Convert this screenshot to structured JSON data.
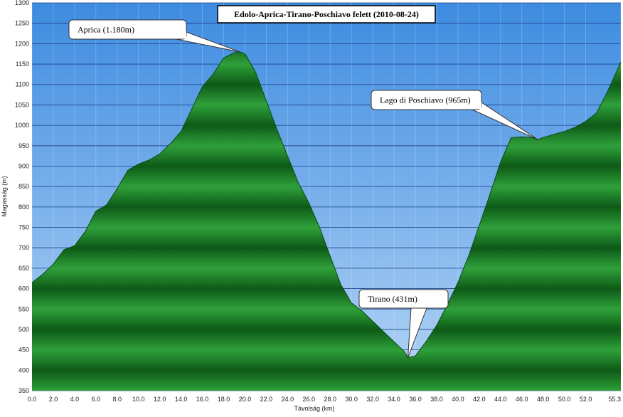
{
  "chart_data": {
    "type": "area",
    "title": "Edolo-Aprica-Tirano-Poschiavo felett (2010-08-24)",
    "x_label": "Távolság  (km)",
    "y_label": "Magasság (m)",
    "color": "#1e8a2a",
    "x": [
      0,
      1,
      2,
      3,
      4,
      5,
      6,
      7,
      8,
      9,
      10,
      11,
      12,
      13,
      14,
      15,
      16,
      17,
      18,
      19,
      19.5,
      20,
      21,
      22,
      23,
      24,
      25,
      26,
      27,
      28,
      29,
      30,
      31,
      32,
      33,
      34,
      35,
      35.3,
      36,
      37,
      38,
      39,
      40,
      41,
      42,
      43,
      44,
      45,
      46,
      47,
      47.5,
      48,
      49,
      50,
      51,
      52,
      53,
      54,
      55.3
    ],
    "values": [
      615,
      635,
      660,
      695,
      705,
      740,
      790,
      805,
      845,
      890,
      905,
      915,
      930,
      955,
      985,
      1040,
      1095,
      1125,
      1165,
      1178,
      1180,
      1175,
      1130,
      1060,
      990,
      925,
      860,
      810,
      750,
      680,
      610,
      565,
      545,
      520,
      495,
      470,
      445,
      431,
      435,
      470,
      510,
      560,
      615,
      680,
      755,
      830,
      910,
      970,
      972,
      970,
      965,
      970,
      978,
      985,
      995,
      1010,
      1030,
      1080,
      1155
    ],
    "xlim": [
      0,
      55.3
    ],
    "ylim": [
      350,
      1300
    ],
    "xticks": [
      {
        "value": 0,
        "label": "0.0"
      },
      {
        "value": 2,
        "label": "2.0"
      },
      {
        "value": 4,
        "label": "4.0"
      },
      {
        "value": 6,
        "label": "6.0"
      },
      {
        "value": 8,
        "label": "8.0"
      },
      {
        "value": 10,
        "label": "10.0"
      },
      {
        "value": 12,
        "label": "12.0"
      },
      {
        "value": 14,
        "label": "14.0"
      },
      {
        "value": 16,
        "label": "16.0"
      },
      {
        "value": 18,
        "label": "18.0"
      },
      {
        "value": 20,
        "label": "20.0"
      },
      {
        "value": 22,
        "label": "22.0"
      },
      {
        "value": 24,
        "label": "24.0"
      },
      {
        "value": 26,
        "label": "26.0"
      },
      {
        "value": 28,
        "label": "28.0"
      },
      {
        "value": 30,
        "label": "30.0"
      },
      {
        "value": 32,
        "label": "32.0"
      },
      {
        "value": 34,
        "label": "34.0"
      },
      {
        "value": 36,
        "label": "36.0"
      },
      {
        "value": 38,
        "label": "38.0"
      },
      {
        "value": 40,
        "label": "40.0"
      },
      {
        "value": 42,
        "label": "42.0"
      },
      {
        "value": 44,
        "label": "44.0"
      },
      {
        "value": 46,
        "label": "46.0"
      },
      {
        "value": 48,
        "label": "48.0"
      },
      {
        "value": 50,
        "label": "50.0"
      },
      {
        "value": 52,
        "label": "52.0"
      },
      55.3
    ],
    "yticks": [
      350,
      400,
      450,
      500,
      550,
      600,
      650,
      700,
      750,
      800,
      850,
      900,
      950,
      1000,
      1050,
      1100,
      1150,
      1200,
      1250,
      1300
    ],
    "grid": true,
    "annotations": [
      {
        "text": "Aprica (1.180m)",
        "x": 19.5,
        "y": 1180
      },
      {
        "text": "Lago di Poschiavo (965m)",
        "x": 47.5,
        "y": 965
      },
      {
        "text": "Tirano (431m)",
        "x": 35.3,
        "y": 431
      }
    ]
  }
}
